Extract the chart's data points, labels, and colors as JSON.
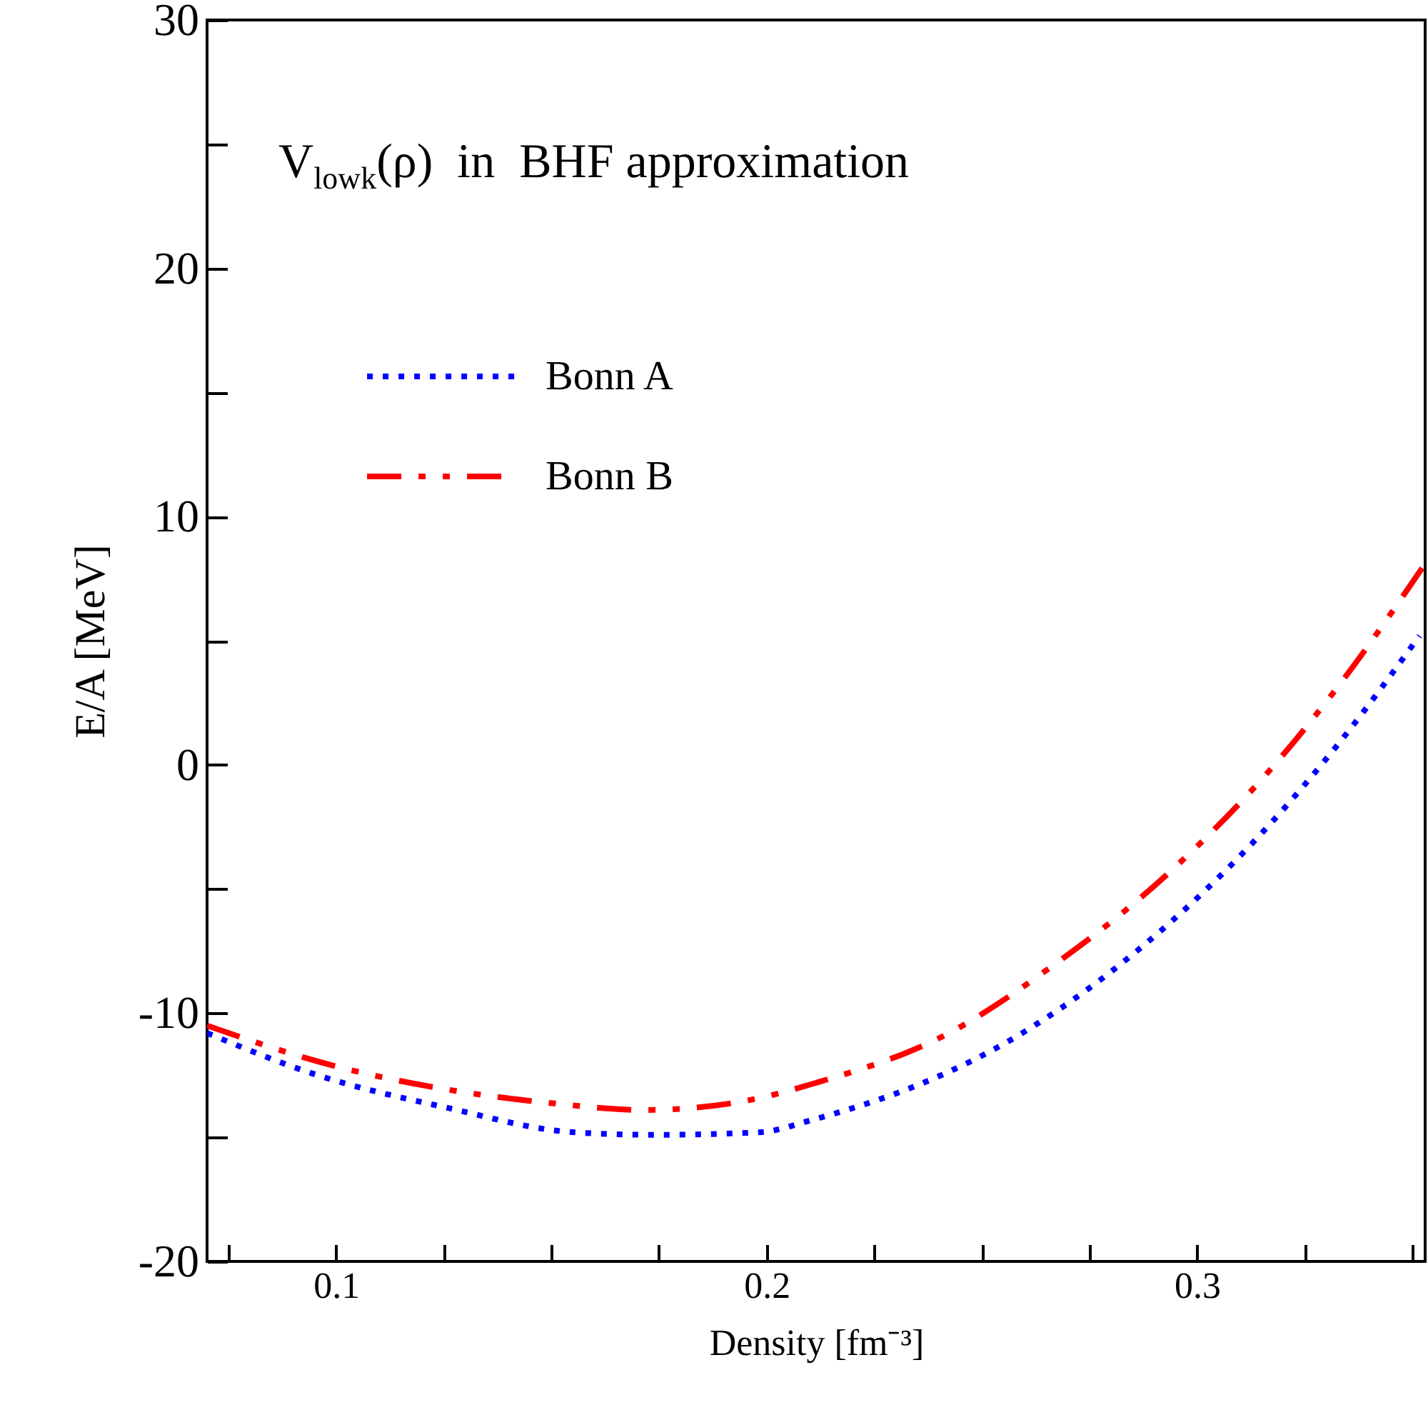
{
  "chart_data": {
    "type": "line",
    "annotations": [
      "V$_{lowk}$(ρ)  in  BHF approximation"
    ],
    "xlabel": "Density [fm⁻³]",
    "ylabel": "E/A [MeV]",
    "xlim": [
      0.07,
      0.353
    ],
    "ylim": [
      -20,
      30
    ],
    "xticks": [
      {
        "value": 0.075,
        "label": null
      },
      0.1,
      {
        "value": 0.125,
        "label": null
      },
      {
        "value": 0.15,
        "label": null
      },
      {
        "value": 0.175,
        "label": null
      },
      0.2,
      {
        "value": 0.225,
        "label": null
      },
      {
        "value": 0.25,
        "label": null
      },
      {
        "value": 0.275,
        "label": null
      },
      0.3,
      {
        "value": 0.325,
        "label": null
      },
      {
        "value": 0.35,
        "label": null
      }
    ],
    "yticks": [
      -20,
      {
        "value": -15,
        "label": null
      },
      -10,
      {
        "value": -5,
        "label": null
      },
      0,
      {
        "value": 5,
        "label": null
      },
      10,
      {
        "value": 15,
        "label": null
      },
      20,
      {
        "value": 25,
        "label": null
      },
      30
    ],
    "grid": false,
    "legend": "top left",
    "series": [
      {
        "name": "Bonn A",
        "color": "#0000ff",
        "line_style": "dotted",
        "x": [
          0.07,
          0.0957,
          0.1255,
          0.1553,
          0.1742,
          0.1983,
          0.2106,
          0.2613,
          0.286,
          0.3169,
          0.3331,
          0.3517
        ],
        "values": [
          -10.8,
          -12.5,
          -13.8,
          -14.8,
          -14.9,
          -14.8,
          -14.3,
          -10.6,
          -7.5,
          -2.4,
          0.9,
          5.2
        ]
      },
      {
        "name": "Bonn B",
        "color": "#ff0000",
        "line_style": "dashed",
        "x": [
          0.07,
          0.099,
          0.1232,
          0.1487,
          0.1719,
          0.196,
          0.2116,
          0.2424,
          0.2656,
          0.2944,
          0.3185,
          0.3334,
          0.353
        ],
        "values": [
          -10.5,
          -12.1,
          -13.0,
          -13.6,
          -13.9,
          -13.5,
          -12.8,
          -10.8,
          -8.2,
          -4.2,
          0.1,
          3.3,
          8.1
        ]
      }
    ]
  }
}
